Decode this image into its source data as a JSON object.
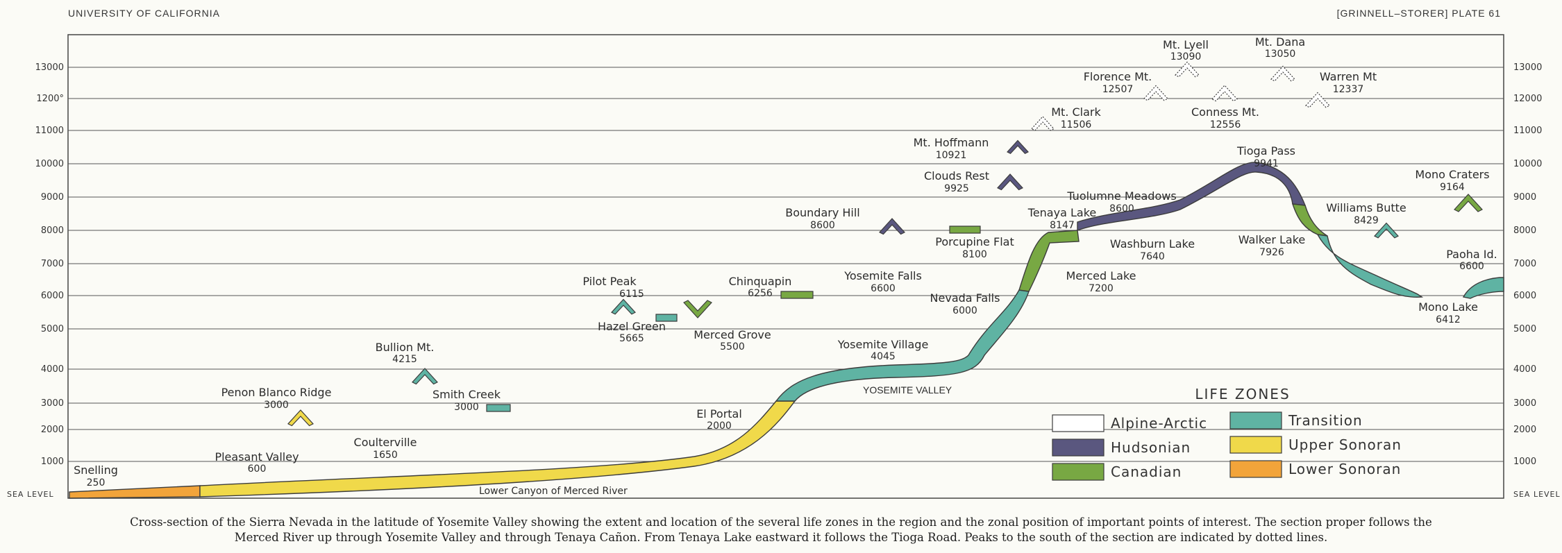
{
  "header": {
    "left": "UNIVERSITY OF CALIFORNIA",
    "right": "[GRINNELL–STORER] PLATE 61"
  },
  "colors": {
    "alpine_arctic": "#ffffff",
    "hudsonian": "#5a577f",
    "canadian": "#78a843",
    "transition": "#5fb3a3",
    "upper_sonoran": "#f0d94a",
    "lower_sonoran": "#f2a43a"
  },
  "chart_data": {
    "type": "area",
    "y_tick_labels": [
      "SEA LEVEL",
      "1000",
      "2000",
      "3000",
      "4000",
      "5000",
      "6000",
      "7000",
      "8000",
      "9000",
      "10000",
      "11000",
      "1200°",
      "13000"
    ],
    "y_tick_labels_right": [
      "SEA LEVEL",
      "1000",
      "2000",
      "3000",
      "4000",
      "5000",
      "6000",
      "7000",
      "8000",
      "9000",
      "10000",
      "11000",
      "12000",
      "13000"
    ],
    "ylim": [
      0,
      14000
    ],
    "grid": true,
    "profile": [
      {
        "x": 0,
        "y": 250,
        "zone": "lower_sonoran"
      },
      {
        "x": 14,
        "y": 400,
        "zone": "upper_sonoran"
      },
      {
        "x": 45,
        "y": 1300,
        "zone": "upper_sonoran"
      },
      {
        "x": 50,
        "y": 3000,
        "zone": "transition"
      },
      {
        "x": 60,
        "y": 4045,
        "zone": "transition"
      },
      {
        "x": 64,
        "y": 5000,
        "zone": "transition"
      },
      {
        "x": 66,
        "y": 6000,
        "zone": "canadian"
      },
      {
        "x": 68,
        "y": 8000,
        "zone": "canadian"
      },
      {
        "x": 70,
        "y": 8147,
        "zone": "hudsonian"
      },
      {
        "x": 76,
        "y": 8600,
        "zone": "hudsonian"
      },
      {
        "x": 80,
        "y": 9941,
        "zone": "hudsonian"
      },
      {
        "x": 84,
        "y": 7926,
        "zone": "transition"
      },
      {
        "x": 91,
        "y": 6412,
        "zone": "transition"
      }
    ],
    "points": [
      {
        "name": "Snelling",
        "value": "250"
      },
      {
        "name": "Pleasant Valley",
        "value": "600"
      },
      {
        "name": "Coulterville",
        "value": "1650"
      },
      {
        "name": "Penon Blanco Ridge",
        "value": "3000",
        "zone": "upper_sonoran"
      },
      {
        "name": "Bullion Mt.",
        "value": "4215",
        "zone": "transition"
      },
      {
        "name": "Smith Creek",
        "value": "3000",
        "zone": "transition"
      },
      {
        "name": "El Portal",
        "value": "2000"
      },
      {
        "name": "Pilot Peak",
        "value": "6115",
        "zone": "transition"
      },
      {
        "name": "Hazel Green",
        "value": "5665",
        "zone": "transition"
      },
      {
        "name": "Merced Grove",
        "value": "5500",
        "zone": "canadian"
      },
      {
        "name": "Chinquapin",
        "value": "6256",
        "zone": "canadian"
      },
      {
        "name": "Yosemite Village",
        "value": "4045"
      },
      {
        "name": "Yosemite Falls",
        "value": "6600"
      },
      {
        "name": "Nevada Falls",
        "value": "6000"
      },
      {
        "name": "Boundary Hill",
        "value": "8600",
        "zone": "hudsonian"
      },
      {
        "name": "Porcupine Flat",
        "value": "8100",
        "zone": "canadian"
      },
      {
        "name": "Clouds Rest",
        "value": "9925",
        "zone": "hudsonian"
      },
      {
        "name": "Mt. Hoffmann",
        "value": "10921",
        "zone": "hudsonian"
      },
      {
        "name": "Mt. Clark",
        "value": "11506",
        "zone": "alpine_arctic"
      },
      {
        "name": "Tenaya Lake",
        "value": "8147"
      },
      {
        "name": "Merced Lake",
        "value": "7200"
      },
      {
        "name": "Washburn Lake",
        "value": "7640"
      },
      {
        "name": "Tuolumne Meadows",
        "value": "8600"
      },
      {
        "name": "Florence Mt.",
        "value": "12507",
        "zone": "alpine_arctic"
      },
      {
        "name": "Mt. Lyell",
        "value": "13090",
        "zone": "alpine_arctic"
      },
      {
        "name": "Conness Mt.",
        "value": "12556",
        "zone": "alpine_arctic"
      },
      {
        "name": "Mt. Dana",
        "value": "13050",
        "zone": "alpine_arctic"
      },
      {
        "name": "Warren Mt",
        "value": "12337",
        "zone": "alpine_arctic"
      },
      {
        "name": "Tioga Pass",
        "value": "9941"
      },
      {
        "name": "Walker Lake",
        "value": "7926"
      },
      {
        "name": "Williams Butte",
        "value": "8429",
        "zone": "transition"
      },
      {
        "name": "Mono Craters",
        "value": "9164",
        "zone": "canadian"
      },
      {
        "name": "Mono Lake",
        "value": "6412"
      },
      {
        "name": "Paoha Id.",
        "value": "6600"
      }
    ],
    "annotations": {
      "yosemite_valley": "YOSEMITE VALLEY",
      "lower_canyon": "Lower Canyon of Merced River"
    },
    "legend": {
      "title": "LIFE ZONES",
      "placement": "bottom-right",
      "items": [
        {
          "key": "alpine_arctic",
          "label": "Alpine-Arctic"
        },
        {
          "key": "hudsonian",
          "label": "Hudsonian"
        },
        {
          "key": "canadian",
          "label": "Canadian"
        },
        {
          "key": "transition",
          "label": "Transition"
        },
        {
          "key": "upper_sonoran",
          "label": "Upper Sonoran"
        },
        {
          "key": "lower_sonoran",
          "label": "Lower Sonoran"
        }
      ]
    }
  },
  "caption": {
    "line1": "Cross-section of the Sierra Nevada in the latitude of Yosemite Valley showing the extent and location of the several life zones in the region and the zonal position of important points of interest.  The section proper follows the",
    "line2": "Merced River up through Yosemite Valley and through Tenaya Cañon.  From Tenaya Lake eastward it follows the Tioga Road.  Peaks to the south of the section are indicated by dotted lines."
  }
}
